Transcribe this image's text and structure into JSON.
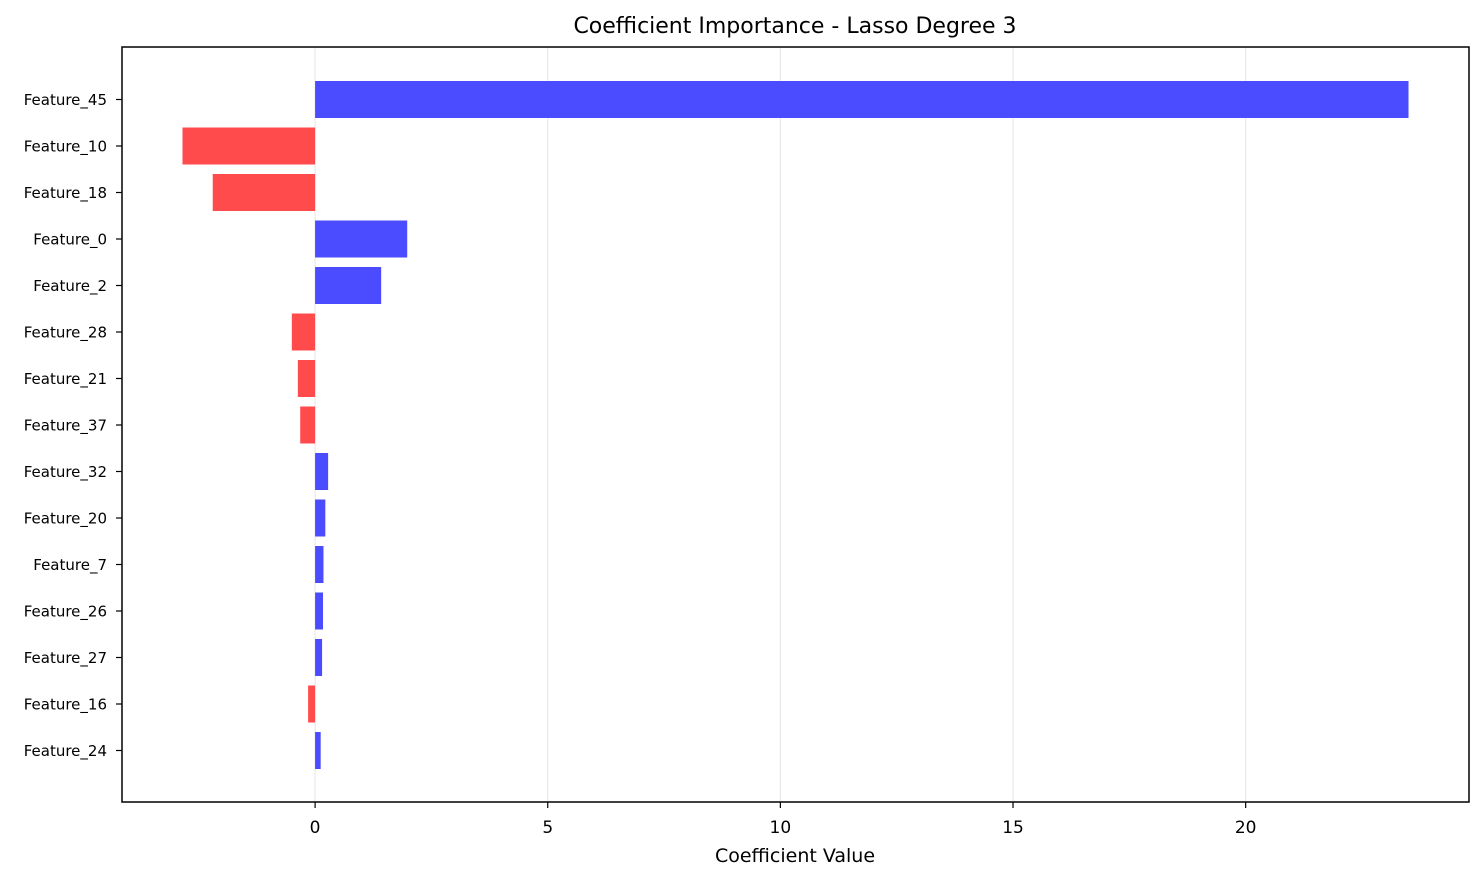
{
  "chart_data": {
    "type": "bar",
    "orientation": "horizontal",
    "title": "Coefficient Importance - Lasso Degree 3",
    "xlabel": "Coefficient Value",
    "ylabel": "",
    "categories": [
      "Feature_45",
      "Feature_10",
      "Feature_18",
      "Feature_0",
      "Feature_2",
      "Feature_28",
      "Feature_21",
      "Feature_37",
      "Feature_32",
      "Feature_20",
      "Feature_7",
      "Feature_26",
      "Feature_27",
      "Feature_16",
      "Feature_24"
    ],
    "values": [
      23.5,
      -2.85,
      -2.2,
      1.98,
      1.42,
      -0.5,
      -0.37,
      -0.32,
      0.28,
      0.22,
      0.18,
      0.17,
      0.15,
      -0.15,
      0.12
    ],
    "xlim": [
      -4.15,
      24.8
    ],
    "xticks": [
      0,
      5,
      10,
      15,
      20
    ],
    "grid": "x",
    "colors": {
      "positive": "#4b4bff",
      "negative": "#ff4b4b",
      "grid": "#e5e5e5",
      "axis": "#000000"
    }
  }
}
